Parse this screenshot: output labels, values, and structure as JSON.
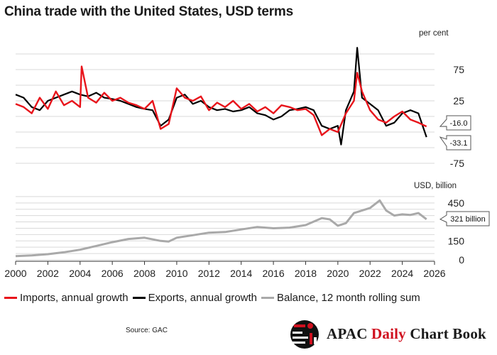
{
  "title": "China trade with the United States, USD terms",
  "source": "Source: GAC",
  "brand": {
    "name_a": "APAC",
    "name_b": "Daily",
    "name_c": "Chart Book"
  },
  "colors": {
    "imports": "#e8141b",
    "exports": "#000000",
    "balance": "#a9a9a9",
    "grid": "#d9d9d9"
  },
  "legend": [
    {
      "label": "Imports, annual growth",
      "color": "#e8141b"
    },
    {
      "label": "Exports, annual growth",
      "color": "#000000"
    },
    {
      "label": "Balance, 12 month rolling sum",
      "color": "#a9a9a9"
    }
  ],
  "chart_data": [
    {
      "type": "line",
      "panel": "growth",
      "unit_label": "per cent",
      "ylim": [
        -100,
        125
      ],
      "yticks": [
        75,
        25,
        -75
      ],
      "x_ticks": [
        2000,
        2002,
        2004,
        2006,
        2008,
        2010,
        2012,
        2014,
        2016,
        2018,
        2020,
        2022,
        2024,
        2026
      ],
      "callouts": [
        {
          "text": "-16.0",
          "value": -16.0,
          "series": "Imports, annual growth"
        },
        {
          "text": "-33.1",
          "value": -33.1,
          "series": "Exports, annual growth"
        }
      ],
      "series": [
        {
          "name": "Imports, annual growth",
          "x": [
            2000,
            2000.5,
            2001,
            2001.5,
            2002,
            2002.5,
            2003,
            2003.5,
            2004,
            2004.1,
            2004.5,
            2005,
            2005.5,
            2006,
            2006.5,
            2007,
            2007.5,
            2008,
            2008.5,
            2009,
            2009.5,
            2010,
            2010.5,
            2011,
            2011.5,
            2012,
            2012.5,
            2013,
            2013.5,
            2014,
            2014.5,
            2015,
            2015.5,
            2016,
            2016.5,
            2017,
            2017.5,
            2018,
            2018.5,
            2019,
            2019.5,
            2020,
            2020.5,
            2021,
            2021.2,
            2021.5,
            2022,
            2022.5,
            2023,
            2023.5,
            2024,
            2024.5,
            2025,
            2025.5
          ],
          "values": [
            20,
            15,
            5,
            30,
            12,
            40,
            18,
            25,
            15,
            80,
            30,
            22,
            38,
            25,
            30,
            22,
            18,
            12,
            25,
            -20,
            -12,
            45,
            30,
            25,
            32,
            10,
            22,
            15,
            25,
            12,
            20,
            8,
            15,
            5,
            18,
            15,
            10,
            12,
            2,
            -30,
            -20,
            -25,
            5,
            25,
            70,
            40,
            10,
            -5,
            -10,
            0,
            8,
            -5,
            -10,
            -16.0
          ]
        },
        {
          "name": "Exports, annual growth",
          "x": [
            2000,
            2000.5,
            2001,
            2001.5,
            2002,
            2002.5,
            2003,
            2003.5,
            2004,
            2004.5,
            2005,
            2005.5,
            2006,
            2006.5,
            2007,
            2007.5,
            2008,
            2008.5,
            2009,
            2009.5,
            2010,
            2010.5,
            2011,
            2011.5,
            2012,
            2012.5,
            2013,
            2013.5,
            2014,
            2014.5,
            2015,
            2015.5,
            2016,
            2016.5,
            2017,
            2017.5,
            2018,
            2018.5,
            2019,
            2019.5,
            2020,
            2020.2,
            2020.5,
            2021,
            2021.2,
            2021.5,
            2022,
            2022.5,
            2023,
            2023.5,
            2024,
            2024.5,
            2025,
            2025.5
          ],
          "values": [
            35,
            30,
            15,
            10,
            25,
            30,
            35,
            40,
            35,
            32,
            38,
            30,
            28,
            25,
            20,
            15,
            12,
            10,
            -15,
            -5,
            30,
            35,
            20,
            25,
            15,
            10,
            12,
            8,
            10,
            15,
            5,
            2,
            -5,
            0,
            10,
            12,
            15,
            10,
            -15,
            -20,
            -15,
            -45,
            10,
            40,
            110,
            30,
            20,
            10,
            -15,
            -10,
            5,
            10,
            5,
            -33.1
          ]
        }
      ]
    },
    {
      "type": "area",
      "panel": "balance",
      "unit_label": "USD, billion",
      "ylim": [
        0,
        550
      ],
      "yticks": [
        450,
        150,
        0
      ],
      "x_ticks": [
        2000,
        2002,
        2004,
        2006,
        2008,
        2010,
        2012,
        2014,
        2016,
        2018,
        2020,
        2022,
        2024,
        2026
      ],
      "callouts": [
        {
          "text": "321 billion",
          "value": 321,
          "series": "Balance, 12 month rolling sum"
        }
      ],
      "series": [
        {
          "name": "Balance, 12 month rolling sum",
          "x": [
            2000,
            2001,
            2002,
            2003,
            2004,
            2005,
            2006,
            2007,
            2008,
            2009,
            2009.5,
            2010,
            2011,
            2012,
            2013,
            2014,
            2015,
            2016,
            2017,
            2018,
            2019,
            2019.5,
            2020,
            2020.5,
            2021,
            2022,
            2022.6,
            2023,
            2023.5,
            2024,
            2024.5,
            2025,
            2025.5
          ],
          "values": [
            30,
            35,
            45,
            60,
            80,
            110,
            140,
            165,
            175,
            150,
            145,
            175,
            195,
            215,
            220,
            240,
            260,
            250,
            255,
            275,
            330,
            320,
            270,
            290,
            370,
            410,
            470,
            390,
            350,
            360,
            355,
            370,
            321
          ]
        }
      ]
    }
  ]
}
